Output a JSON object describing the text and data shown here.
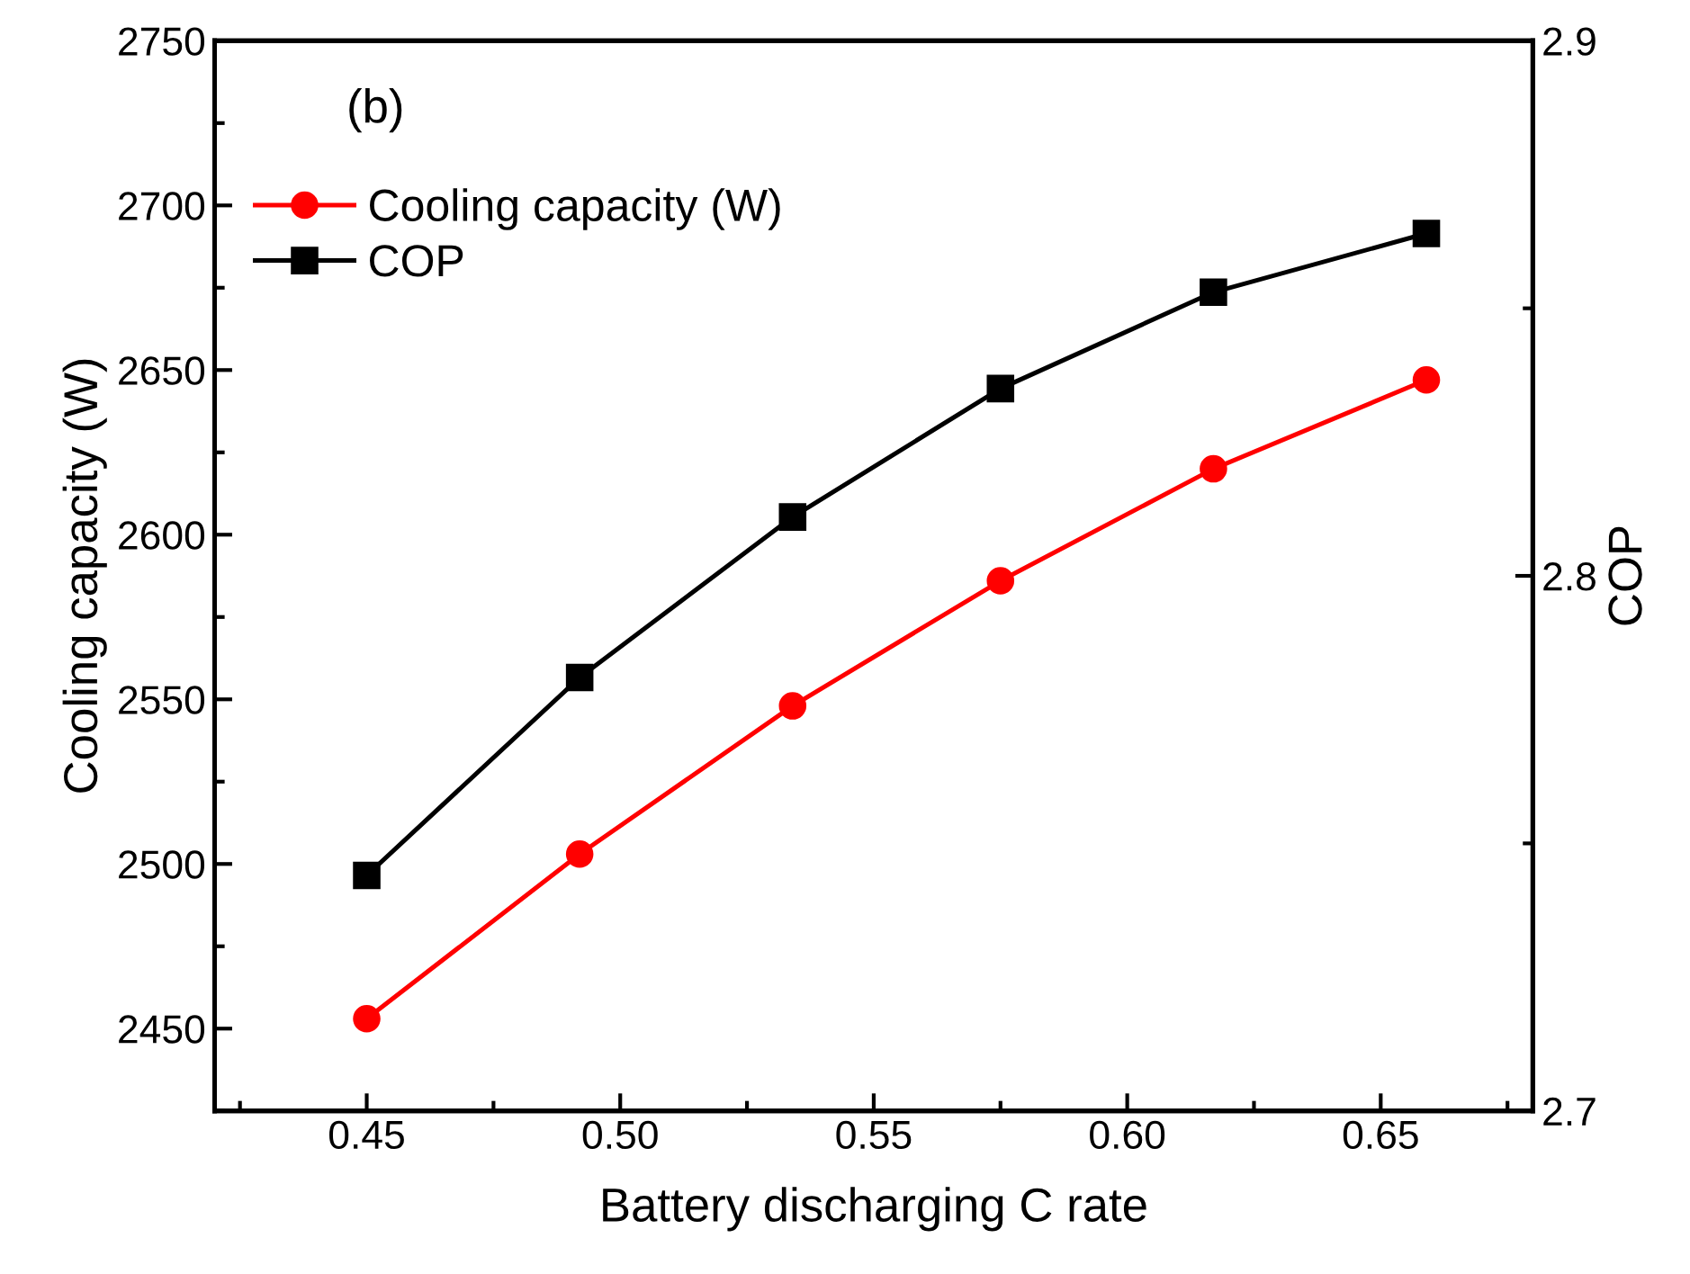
{
  "chart_data": {
    "type": "line",
    "xlabel": "Battery discharging C rate",
    "ylabel": "Cooling capacity (W)",
    "y2label": "COP",
    "annotations": [
      "(b)"
    ],
    "x": [
      0.45,
      0.492,
      0.534,
      0.575,
      0.617,
      0.659
    ],
    "series": [
      {
        "name": "Cooling capacity (W)",
        "color": "#ff0000",
        "marker": "circle",
        "values": [
          2453,
          2503,
          2548,
          2586,
          2620,
          2647
        ]
      },
      {
        "name": "COP",
        "color": "#000000",
        "marker": "square",
        "axis": "y2",
        "values": [
          2.744,
          2.781,
          2.811,
          2.835,
          2.853,
          2.864
        ]
      }
    ],
    "xlim": [
      0.42,
      0.68
    ],
    "xticks": [
      {
        "value": 0.45,
        "label": "0.45"
      },
      {
        "value": 0.5,
        "label": "0.50"
      },
      {
        "value": 0.55,
        "label": "0.55"
      },
      {
        "value": 0.6,
        "label": "0.60"
      },
      {
        "value": 0.65,
        "label": "0.65"
      }
    ],
    "ylim": [
      2425,
      2750
    ],
    "yticks": [
      2450,
      2500,
      2550,
      2600,
      2650,
      2700,
      2750
    ],
    "y2lim": [
      2.7,
      2.9
    ],
    "y2ticks": [
      2.7,
      2.8,
      2.9
    ],
    "legend": "top left",
    "grid": false
  }
}
